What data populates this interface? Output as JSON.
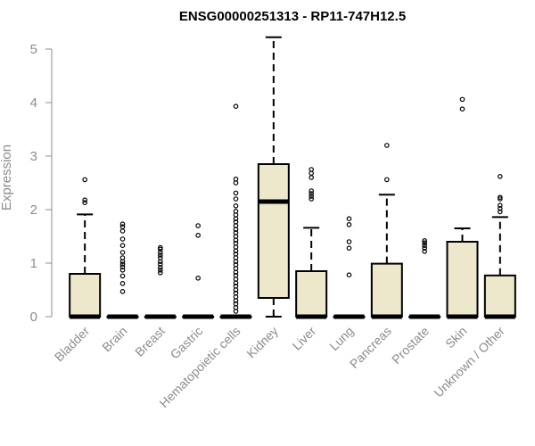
{
  "chart_data": {
    "type": "box",
    "title": "ENSG00000251313 - RP11-747H12.5",
    "ylabel": "Expression",
    "xlabel": "",
    "ylim": [
      0,
      5.2
    ],
    "yticks": [
      0,
      1,
      2,
      3,
      4,
      5
    ],
    "grid": false,
    "legend": "none",
    "box_fill": "#ede7cc",
    "line_color": "#000000",
    "axis_text_color": "#8c8c8c",
    "categories": [
      "Bladder",
      "Brain",
      "Breast",
      "Gastric",
      "Hematopoietic cells",
      "Kidney",
      "Liver",
      "Lung",
      "Pancreas",
      "Prostate",
      "Skin",
      "Unknown / Other"
    ],
    "boxes": [
      {
        "q1": 0,
        "median": 0,
        "q3": 0.8,
        "whisker_low": 0,
        "whisker_high": 1.91,
        "outliers": [
          2.13,
          2.18,
          2.56
        ]
      },
      {
        "q1": 0,
        "median": 0,
        "q3": 0,
        "whisker_low": 0,
        "whisker_high": 0,
        "outliers": [
          0.47,
          0.62,
          0.76,
          0.87,
          0.93,
          0.98,
          1.03,
          1.1,
          1.2,
          1.33,
          1.45,
          1.6,
          1.68,
          1.73
        ]
      },
      {
        "q1": 0,
        "median": 0,
        "q3": 0,
        "whisker_low": 0,
        "whisker_high": 0,
        "outliers": [
          0.82,
          0.87,
          0.92,
          0.98,
          1.03,
          1.1,
          1.15,
          1.2,
          1.26,
          1.29
        ]
      },
      {
        "q1": 0,
        "median": 0,
        "q3": 0,
        "whisker_low": 0,
        "whisker_high": 0,
        "outliers": [
          0.72,
          1.52,
          1.7
        ]
      },
      {
        "q1": 0,
        "median": 0,
        "q3": 0,
        "whisker_low": 0,
        "whisker_high": 0,
        "outliers": [
          0.1,
          0.17,
          0.24,
          0.3,
          0.37,
          0.44,
          0.5,
          0.57,
          0.63,
          0.7,
          0.77,
          0.83,
          0.9,
          0.97,
          1.03,
          1.1,
          1.17,
          1.23,
          1.3,
          1.37,
          1.43,
          1.5,
          1.57,
          1.63,
          1.7,
          1.77,
          1.83,
          1.9,
          1.97,
          2.07,
          2.2,
          2.31,
          2.5,
          2.57,
          3.93
        ]
      },
      {
        "q1": 0.35,
        "median": 2.15,
        "q3": 2.85,
        "whisker_low": 0,
        "whisker_high": 5.22,
        "outliers": []
      },
      {
        "q1": 0,
        "median": 0,
        "q3": 0.85,
        "whisker_low": 0,
        "whisker_high": 1.66,
        "outliers": [
          2.2,
          2.25,
          2.3,
          2.35,
          2.6,
          2.68,
          2.75
        ]
      },
      {
        "q1": 0,
        "median": 0,
        "q3": 0,
        "whisker_low": 0,
        "whisker_high": 0,
        "outliers": [
          0.78,
          1.28,
          1.4,
          1.72,
          1.83
        ]
      },
      {
        "q1": 0,
        "median": 0,
        "q3": 0.99,
        "whisker_low": 0,
        "whisker_high": 2.28,
        "outliers": [
          2.56,
          3.2
        ]
      },
      {
        "q1": 0,
        "median": 0,
        "q3": 0,
        "whisker_low": 0,
        "whisker_high": 0,
        "outliers": [
          1.22,
          1.28,
          1.33,
          1.38,
          1.42
        ]
      },
      {
        "q1": 0,
        "median": 0,
        "q3": 1.4,
        "whisker_low": 0,
        "whisker_high": 1.65,
        "outliers": [
          3.88,
          4.06
        ]
      },
      {
        "q1": 0,
        "median": 0,
        "q3": 0.77,
        "whisker_low": 0,
        "whisker_high": 1.86,
        "outliers": [
          1.96,
          2.02,
          2.08,
          2.2,
          2.23,
          2.62
        ]
      }
    ]
  }
}
